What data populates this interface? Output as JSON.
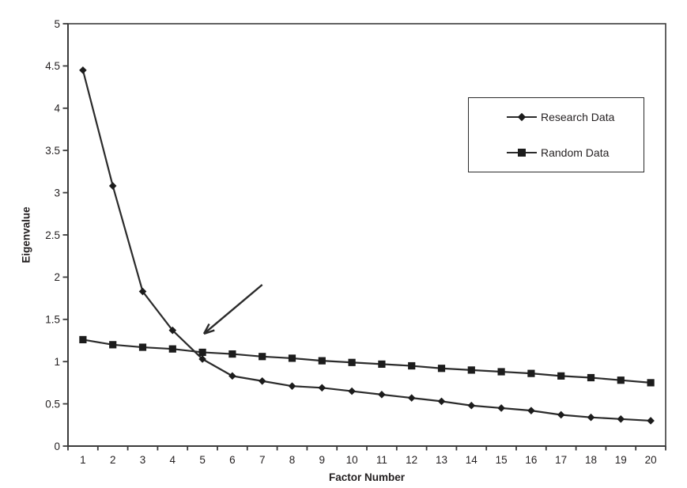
{
  "page": {
    "background": "#ffffff"
  },
  "chart_data": {
    "type": "line",
    "title": "",
    "xlabel": "Factor Number",
    "ylabel": "Eigenvalue",
    "x": [
      1,
      2,
      3,
      4,
      5,
      6,
      7,
      8,
      9,
      10,
      11,
      12,
      13,
      14,
      15,
      16,
      17,
      18,
      19,
      20
    ],
    "ylim": [
      0,
      5
    ],
    "y_tick_labels": [
      "0",
      "0.5",
      "1",
      "1.5",
      "2",
      "2.5",
      "3",
      "3.5",
      "4",
      "4.5",
      "5"
    ],
    "grid": false,
    "legend_position": "upper-right",
    "series": [
      {
        "name": "Research Data",
        "marker": "diamond",
        "values": [
          4.45,
          3.08,
          1.83,
          1.37,
          1.03,
          0.83,
          0.77,
          0.71,
          0.69,
          0.65,
          0.61,
          0.57,
          0.53,
          0.48,
          0.45,
          0.42,
          0.37,
          0.34,
          0.32,
          0.3
        ]
      },
      {
        "name": "Random Data",
        "marker": "square",
        "values": [
          1.26,
          1.2,
          1.17,
          1.15,
          1.11,
          1.09,
          1.06,
          1.04,
          1.01,
          0.99,
          0.97,
          0.95,
          0.92,
          0.9,
          0.88,
          0.86,
          0.83,
          0.81,
          0.78,
          0.75
        ]
      }
    ],
    "annotation": {
      "type": "arrow",
      "from": {
        "factor": 7.0,
        "value": 1.91
      },
      "to": {
        "factor": 5.05,
        "value": 1.33
      }
    },
    "colors": {
      "series": "#2b2b2b",
      "marker": "#1c1c1c",
      "axis": "#3b3b3b",
      "text": "#231f20",
      "background": "#ffffff"
    }
  }
}
